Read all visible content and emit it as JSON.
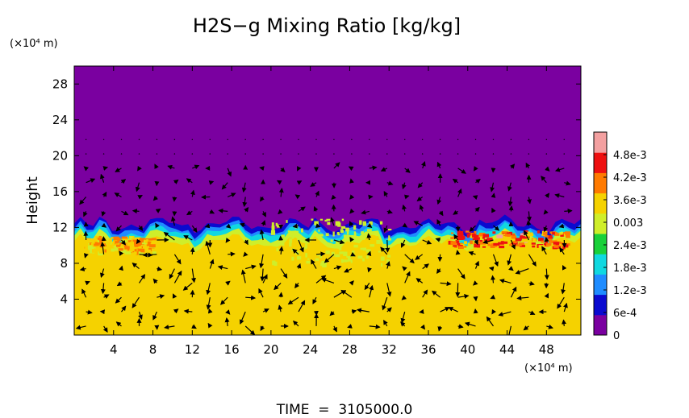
{
  "chart_data": {
    "type": "heatmap",
    "title": "H2S−g Mixing Ratio [kg/kg]",
    "ylabel": "Height",
    "xunit": "(×10⁴ m)",
    "yunit": "(×10⁴ m)",
    "footer": "TIME  =  3105000.0",
    "xlim": [
      0,
      51.5
    ],
    "ylim": [
      0,
      30
    ],
    "xticks": [
      4,
      8,
      12,
      16,
      20,
      24,
      28,
      32,
      36,
      40,
      44,
      48
    ],
    "yticks": [
      4,
      8,
      12,
      16,
      20,
      24,
      28
    ],
    "colorbar": {
      "range": [
        0,
        0.0054
      ],
      "tick_values": [
        0,
        0.0006,
        0.0012,
        0.0018,
        0.0024,
        0.003,
        0.0036,
        0.0042,
        0.0048
      ],
      "tick_labels": [
        "0",
        "6e-4",
        "1.2e-3",
        "1.8e-3",
        "2.4e-3",
        "0.003",
        "3.6e-3",
        "4.2e-3",
        "4.8e-3"
      ],
      "colors": [
        "#7a00a0",
        "#0a0ad0",
        "#1f8cff",
        "#10d8e0",
        "#19d13a",
        "#cfee2a",
        "#f5d200",
        "#ff7a00",
        "#ee1010",
        "#f3a0a0"
      ]
    },
    "field": {
      "lower_value": 0.0033,
      "upper_value": 0.0,
      "interface_height": 12.3,
      "enhanced_layer": [
        {
          "x_from": 1,
          "x_to": 8,
          "y": 10.2,
          "peak": 0.0042
        },
        {
          "x_from": 38,
          "x_to": 50,
          "y": 10.8,
          "peak": 0.0048
        }
      ]
    },
    "vectors": "wind field overlay (arrows)"
  }
}
